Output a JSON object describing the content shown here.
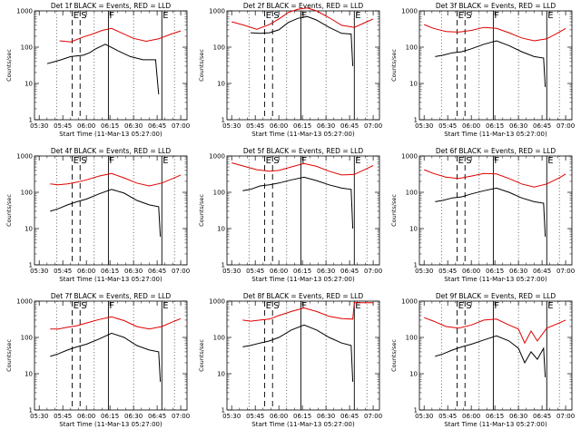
{
  "chart_data": [
    {
      "type": "line",
      "title": "Det 1f BLACK = Events, RED = LLD",
      "xlabel": "Start Time (11-Mar-13 05:27:00)",
      "ylabel": "Counts/sec",
      "y_scale": "log",
      "ylim": [
        1,
        1000
      ],
      "x_ticks": [
        "05:30",
        "05:45",
        "06:00",
        "06:15",
        "06:30",
        "06:45",
        "07:00"
      ],
      "y_ticks": [
        "1",
        "10",
        "100",
        "1000"
      ],
      "markers": [
        "E",
        "S",
        "F",
        "E"
      ],
      "series": [
        {
          "name": "RED",
          "color": "#e00000",
          "x": [
            "05:43",
            "05:50",
            "05:58",
            "06:04",
            "06:10",
            "06:16",
            "06:22",
            "06:30",
            "06:38",
            "06:46",
            "06:54",
            "07:00"
          ],
          "y": [
            150,
            140,
            190,
            230,
            290,
            330,
            250,
            175,
            145,
            170,
            230,
            280
          ]
        },
        {
          "name": "BLACK",
          "color": "#000000",
          "x": [
            "05:35",
            "05:40",
            "05:44",
            "05:50",
            "05:58",
            "06:02",
            "06:06",
            "06:12",
            "06:20",
            "06:28",
            "06:36",
            "06:44",
            "06:46"
          ],
          "y": [
            35,
            40,
            45,
            55,
            60,
            70,
            90,
            120,
            80,
            55,
            45,
            45,
            5
          ]
        }
      ]
    },
    {
      "type": "line",
      "title": "Det 2f BLACK = Events, RED = LLD",
      "xlabel": "Start Time (11-Mar-13 05:27:00)",
      "ylabel": "Counts/sec",
      "y_scale": "log",
      "ylim": [
        1,
        1000
      ],
      "x_ticks": [
        "05:30",
        "05:45",
        "06:00",
        "06:15",
        "06:30",
        "06:45",
        "07:00"
      ],
      "y_ticks": [
        "1",
        "10",
        "100",
        "1000"
      ],
      "markers": [
        "E",
        "S",
        "F",
        "E"
      ],
      "series": [
        {
          "name": "RED",
          "color": "#e00000",
          "x": [
            "05:30",
            "05:38",
            "05:46",
            "05:54",
            "06:00",
            "06:06",
            "06:12",
            "06:18",
            "06:24",
            "06:32",
            "06:40",
            "06:48",
            "06:56",
            "07:00"
          ],
          "y": [
            500,
            400,
            310,
            420,
            600,
            900,
            1100,
            1200,
            1000,
            650,
            400,
            350,
            500,
            600
          ]
        },
        {
          "name": "BLACK",
          "color": "#000000",
          "x": [
            "05:42",
            "05:48",
            "05:54",
            "06:00",
            "06:06",
            "06:12",
            "06:18",
            "06:24",
            "06:32",
            "06:40",
            "06:46",
            "06:47"
          ],
          "y": [
            250,
            240,
            250,
            300,
            480,
            620,
            700,
            560,
            350,
            240,
            230,
            30
          ]
        }
      ]
    },
    {
      "type": "line",
      "title": "Det 3f BLACK = Events, RED = LLD",
      "xlabel": "Start Time (11-Mar-13 05:27:00)",
      "ylabel": "Counts/sec",
      "y_scale": "log",
      "ylim": [
        1,
        1000
      ],
      "x_ticks": [
        "05:30",
        "05:45",
        "06:00",
        "06:15",
        "06:30",
        "06:45",
        "07:00"
      ],
      "y_ticks": [
        "1",
        "10",
        "100",
        "1000"
      ],
      "markers": [
        "E",
        "S",
        "F",
        "E"
      ],
      "series": [
        {
          "name": "RED",
          "color": "#e00000",
          "x": [
            "05:30",
            "05:36",
            "05:44",
            "05:52",
            "06:00",
            "06:08",
            "06:16",
            "06:24",
            "06:32",
            "06:40",
            "06:48",
            "06:56",
            "07:00"
          ],
          "y": [
            420,
            330,
            270,
            260,
            290,
            350,
            330,
            250,
            180,
            150,
            170,
            260,
            330
          ]
        },
        {
          "name": "BLACK",
          "color": "#000000",
          "x": [
            "05:37",
            "05:42",
            "05:48",
            "05:54",
            "06:00",
            "06:08",
            "06:16",
            "06:24",
            "06:32",
            "06:40",
            "06:46",
            "06:47"
          ],
          "y": [
            55,
            60,
            70,
            75,
            90,
            120,
            150,
            110,
            75,
            55,
            50,
            8
          ]
        }
      ]
    },
    {
      "type": "line",
      "title": "Det 4f BLACK = Events, RED = LLD",
      "xlabel": "Start Time (11-Mar-13 05:27:00)",
      "ylabel": "Counts/sec",
      "y_scale": "log",
      "ylim": [
        1,
        1000
      ],
      "x_ticks": [
        "05:30",
        "05:45",
        "06:00",
        "06:15",
        "06:30",
        "06:45",
        "07:00"
      ],
      "y_ticks": [
        "1",
        "10",
        "100",
        "1000"
      ],
      "markers": [
        "E",
        "S",
        "F",
        "E"
      ],
      "series": [
        {
          "name": "RED",
          "color": "#e00000",
          "x": [
            "05:37",
            "05:42",
            "05:48",
            "05:54",
            "06:00",
            "06:08",
            "06:16",
            "06:24",
            "06:32",
            "06:40",
            "06:48",
            "06:56",
            "07:00"
          ],
          "y": [
            170,
            160,
            170,
            190,
            220,
            280,
            330,
            250,
            180,
            150,
            180,
            250,
            300
          ]
        },
        {
          "name": "BLACK",
          "color": "#000000",
          "x": [
            "05:37",
            "05:42",
            "05:48",
            "05:54",
            "06:00",
            "06:08",
            "06:16",
            "06:24",
            "06:32",
            "06:40",
            "06:46",
            "06:47"
          ],
          "y": [
            30,
            35,
            45,
            55,
            65,
            90,
            120,
            95,
            60,
            45,
            40,
            6
          ]
        }
      ]
    },
    {
      "type": "line",
      "title": "Det 5f BLACK = Events, RED = LLD",
      "xlabel": "Start Time (11-Mar-13 05:27:00)",
      "ylabel": "Counts/sec",
      "y_scale": "log",
      "ylim": [
        1,
        1000
      ],
      "x_ticks": [
        "05:30",
        "05:45",
        "06:00",
        "06:15",
        "06:30",
        "06:45",
        "07:00"
      ],
      "y_ticks": [
        "1",
        "10",
        "100",
        "1000"
      ],
      "markers": [
        "E",
        "S",
        "F",
        "E"
      ],
      "series": [
        {
          "name": "RED",
          "color": "#e00000",
          "x": [
            "05:30",
            "05:38",
            "05:46",
            "05:54",
            "06:00",
            "06:08",
            "06:16",
            "06:24",
            "06:32",
            "06:40",
            "06:48",
            "06:56",
            "07:00"
          ],
          "y": [
            650,
            520,
            420,
            380,
            400,
            500,
            620,
            520,
            380,
            300,
            310,
            450,
            550
          ]
        },
        {
          "name": "BLACK",
          "color": "#000000",
          "x": [
            "05:37",
            "05:42",
            "05:48",
            "05:54",
            "06:00",
            "06:08",
            "06:16",
            "06:24",
            "06:32",
            "06:40",
            "06:46",
            "06:47"
          ],
          "y": [
            110,
            120,
            150,
            160,
            180,
            220,
            260,
            210,
            160,
            130,
            120,
            10
          ]
        }
      ]
    },
    {
      "type": "line",
      "title": "Det 6f BLACK = Events, RED = LLD",
      "xlabel": "Start Time (11-Mar-13 05:27:00)",
      "ylabel": "Counts/sec",
      "y_scale": "log",
      "ylim": [
        1,
        1000
      ],
      "x_ticks": [
        "05:30",
        "05:45",
        "06:00",
        "06:15",
        "06:30",
        "06:45",
        "07:00"
      ],
      "y_ticks": [
        "1",
        "10",
        "100",
        "1000"
      ],
      "markers": [
        "E",
        "S",
        "F",
        "E"
      ],
      "series": [
        {
          "name": "RED",
          "color": "#e00000",
          "x": [
            "05:30",
            "05:36",
            "05:44",
            "05:52",
            "06:00",
            "06:08",
            "06:16",
            "06:24",
            "06:32",
            "06:40",
            "06:48",
            "06:56",
            "07:00"
          ],
          "y": [
            420,
            330,
            260,
            240,
            280,
            330,
            320,
            240,
            170,
            140,
            170,
            250,
            320
          ]
        },
        {
          "name": "BLACK",
          "color": "#000000",
          "x": [
            "05:37",
            "05:42",
            "05:48",
            "05:54",
            "06:00",
            "06:08",
            "06:16",
            "06:24",
            "06:32",
            "06:40",
            "06:46",
            "06:47"
          ],
          "y": [
            55,
            60,
            70,
            75,
            90,
            110,
            130,
            100,
            70,
            55,
            50,
            6
          ]
        }
      ]
    },
    {
      "type": "line",
      "title": "Det 7f BLACK = Events, RED = LLD",
      "xlabel": "Start Time (11-Mar-13 05:27:00)",
      "ylabel": "Counts/sec",
      "y_scale": "log",
      "ylim": [
        1,
        1000
      ],
      "x_ticks": [
        "05:30",
        "05:45",
        "06:00",
        "06:15",
        "06:30",
        "06:45",
        "07:00"
      ],
      "y_ticks": [
        "1",
        "10",
        "100",
        "1000"
      ],
      "markers": [
        "E",
        "S",
        "F",
        "E"
      ],
      "series": [
        {
          "name": "RED",
          "color": "#e00000",
          "x": [
            "05:37",
            "05:42",
            "05:48",
            "05:54",
            "06:00",
            "06:08",
            "06:16",
            "06:24",
            "06:32",
            "06:40",
            "06:48",
            "06:56",
            "07:00"
          ],
          "y": [
            170,
            170,
            190,
            210,
            250,
            310,
            370,
            290,
            200,
            170,
            200,
            280,
            330
          ]
        },
        {
          "name": "BLACK",
          "color": "#000000",
          "x": [
            "05:37",
            "05:42",
            "05:48",
            "05:54",
            "06:00",
            "06:08",
            "06:16",
            "06:24",
            "06:32",
            "06:40",
            "06:46",
            "06:47"
          ],
          "y": [
            30,
            35,
            45,
            55,
            65,
            90,
            130,
            100,
            60,
            45,
            40,
            6
          ]
        }
      ]
    },
    {
      "type": "line",
      "title": "Det 8f BLACK = Events, RED = LLD",
      "xlabel": "Start Time (11-Mar-13 05:27:00)",
      "ylabel": "Counts/sec",
      "y_scale": "log",
      "ylim": [
        1,
        1000
      ],
      "x_ticks": [
        "05:30",
        "05:45",
        "06:00",
        "06:15",
        "06:30",
        "06:45",
        "07:00"
      ],
      "y_ticks": [
        "1",
        "10",
        "100",
        "1000"
      ],
      "markers": [
        "E",
        "S",
        "F",
        "E"
      ],
      "series": [
        {
          "name": "RED",
          "color": "#e00000",
          "x": [
            "05:37",
            "05:42",
            "05:48",
            "05:54",
            "06:00",
            "06:08",
            "06:16",
            "06:24",
            "06:32",
            "06:40",
            "06:47",
            "06:48",
            "07:00"
          ],
          "y": [
            300,
            280,
            300,
            320,
            400,
            520,
            650,
            520,
            380,
            330,
            320,
            900,
            900
          ]
        },
        {
          "name": "BLACK",
          "color": "#000000",
          "x": [
            "05:37",
            "05:42",
            "05:48",
            "05:54",
            "06:00",
            "06:08",
            "06:16",
            "06:24",
            "06:32",
            "06:40",
            "06:46",
            "06:47"
          ],
          "y": [
            55,
            60,
            70,
            80,
            100,
            160,
            220,
            160,
            100,
            70,
            60,
            6
          ]
        }
      ]
    },
    {
      "type": "line",
      "title": "Det 9f BLACK = Events, RED = LLD",
      "xlabel": "Start Time (11-Mar-13 05:27:00)",
      "ylabel": "Counts/sec",
      "y_scale": "log",
      "ylim": [
        1,
        1000
      ],
      "x_ticks": [
        "05:30",
        "05:45",
        "06:00",
        "06:15",
        "06:30",
        "06:45",
        "07:00"
      ],
      "y_ticks": [
        "1",
        "10",
        "100",
        "1000"
      ],
      "markers": [
        "E",
        "S",
        "F",
        "E"
      ],
      "series": [
        {
          "name": "RED",
          "color": "#e00000",
          "x": [
            "05:30",
            "05:36",
            "05:44",
            "05:52",
            "06:00",
            "06:08",
            "06:16",
            "06:24",
            "06:30",
            "06:34",
            "06:38",
            "06:42",
            "06:48",
            "06:56",
            "07:00"
          ],
          "y": [
            350,
            280,
            200,
            180,
            220,
            300,
            320,
            220,
            170,
            70,
            150,
            80,
            180,
            250,
            300
          ]
        },
        {
          "name": "BLACK",
          "color": "#000000",
          "x": [
            "05:37",
            "05:42",
            "05:48",
            "05:54",
            "06:00",
            "06:08",
            "06:16",
            "06:24",
            "06:30",
            "06:34",
            "06:38",
            "06:42",
            "06:46",
            "06:47"
          ],
          "y": [
            30,
            35,
            45,
            55,
            65,
            85,
            110,
            80,
            50,
            20,
            40,
            25,
            50,
            8
          ]
        }
      ]
    }
  ]
}
